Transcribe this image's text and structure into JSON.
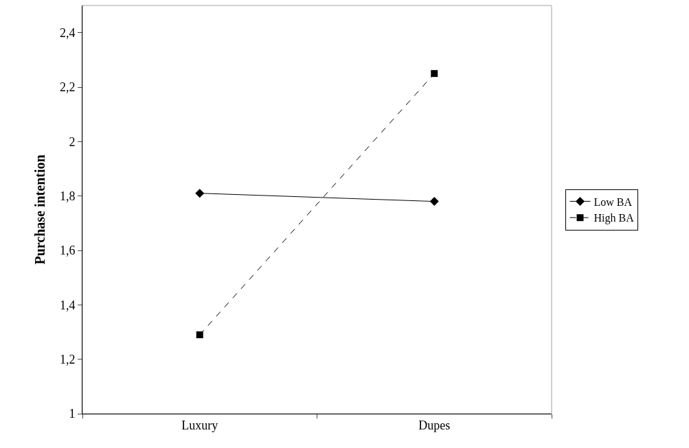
{
  "chart_data": {
    "type": "line",
    "ylabel": "Purchase intention",
    "categories": [
      "Luxury",
      "Dupes"
    ],
    "series": [
      {
        "name": "Low BA",
        "color": "#000000",
        "values": [
          1.81,
          1.78
        ],
        "marker": "diamond",
        "line_style": "solid"
      },
      {
        "name": "High BA",
        "color": "#000000",
        "values": [
          1.29,
          2.25
        ],
        "marker": "square",
        "line_style": "dashed"
      }
    ],
    "ylim": [
      1,
      2.5
    ],
    "yticks": [
      1,
      {
        "value": 1.2,
        "label": "1,2"
      },
      {
        "value": 1.4,
        "label": "1,4"
      },
      {
        "value": 1.6,
        "label": "1,6"
      },
      {
        "value": 1.8,
        "label": "1,8"
      },
      2,
      {
        "value": 2.2,
        "label": "2,2"
      },
      {
        "value": 2.4,
        "label": "2,4"
      }
    ],
    "grid": false,
    "legend": "right"
  }
}
